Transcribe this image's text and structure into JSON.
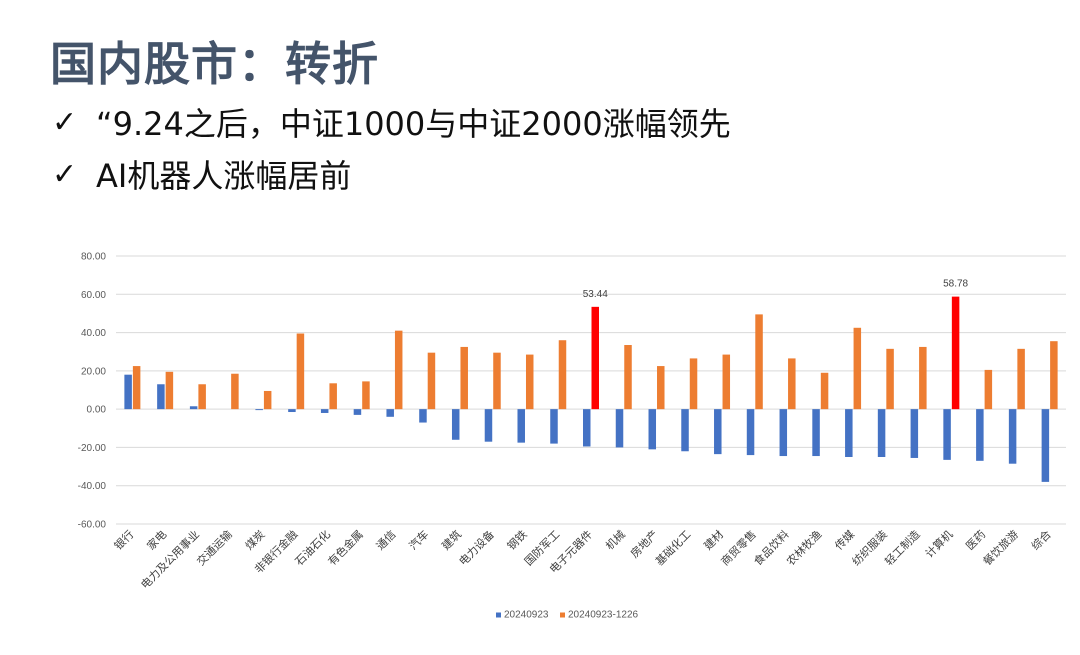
{
  "slide": {
    "title": "国内股市：转折",
    "bullets": [
      "“9.24之后，中证1000与中证2000涨幅领先",
      "AI机器人涨幅居前"
    ],
    "check_glyph": "✓"
  },
  "chart_data": {
    "type": "bar",
    "title": "",
    "xlabel": "",
    "ylabel": "",
    "ylim": [
      -60,
      80
    ],
    "yticks": [
      "-60.00",
      "-40.00",
      "-20.00",
      "0.00",
      "20.00",
      "40.00",
      "60.00",
      "80.00"
    ],
    "grid": true,
    "legend_position": "bottom",
    "categories": [
      "银行",
      "家电",
      "电力及公用事业",
      "交通运输",
      "煤炭",
      "非银行金融",
      "石油石化",
      "有色金属",
      "通信",
      "汽车",
      "建筑",
      "电力设备",
      "钢铁",
      "国防军工",
      "电子元器件",
      "机械",
      "房地产",
      "基础化工",
      "建材",
      "商贸零售",
      "食品饮料",
      "农林牧渔",
      "传媒",
      "纺织服装",
      "轻工制造",
      "计算机",
      "医药",
      "餐饮旅游",
      "综合"
    ],
    "series": [
      {
        "name": "20240923",
        "color": "#4472c4",
        "values": [
          18,
          13,
          1.5,
          0,
          -0.5,
          -1.5,
          -2,
          -3,
          -4,
          -7,
          -16,
          -17,
          -17.5,
          -18,
          -19.5,
          -20,
          -21,
          -22,
          -23.5,
          -24,
          -24.5,
          -24.5,
          -25,
          -25,
          -25.5,
          -26.5,
          -27,
          -28.5,
          -38
        ]
      },
      {
        "name": "20240923-1226",
        "color": "#ed7d31",
        "values": [
          22.5,
          19.5,
          13,
          18.5,
          9.5,
          39.5,
          13.5,
          14.5,
          41,
          29.5,
          32.5,
          29.5,
          28.5,
          36,
          53.44,
          33.5,
          22.5,
          26.5,
          28.5,
          49.5,
          26.5,
          19,
          42.5,
          31.5,
          32.5,
          58.78,
          20.5,
          31.5,
          35.5
        ]
      }
    ],
    "highlight": {
      "color": "#ff0000",
      "series": 1,
      "indices": [
        14,
        25
      ]
    },
    "annotations": [
      "53.44",
      "58.78"
    ]
  }
}
